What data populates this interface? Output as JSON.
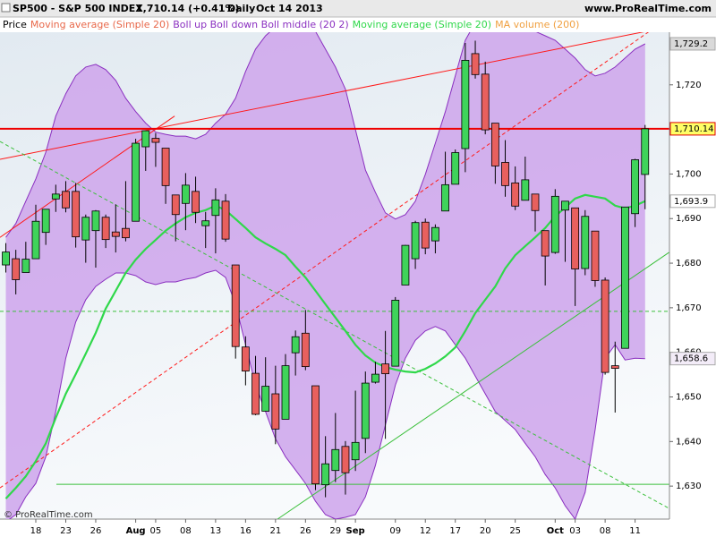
{
  "chart_data": {
    "type": "candlestick",
    "title": "SP500 - S&P 500 INDEX",
    "quote": "1,710.14 (+0.41%)",
    "period": "Daily",
    "date": "Oct 14 2013",
    "source": "www.ProRealTime.com",
    "copyright": "© ProRealTime.com",
    "categories": [
      null,
      null,
      null,
      "18",
      null,
      null,
      "23",
      null,
      null,
      "26",
      null,
      null,
      null,
      "Aug",
      null,
      "05",
      null,
      null,
      "08",
      null,
      null,
      "13",
      null,
      null,
      "16",
      null,
      null,
      "21",
      null,
      null,
      "26",
      null,
      null,
      "29",
      null,
      "Sep",
      null,
      null,
      null,
      "09",
      null,
      null,
      "12",
      null,
      null,
      "17",
      null,
      null,
      "20",
      null,
      null,
      "25",
      null,
      null,
      null,
      "Oct",
      null,
      "03",
      null,
      null,
      "08",
      null,
      null,
      "11",
      null
    ],
    "series": [
      {
        "name": "Price",
        "color": "#000000",
        "up_color": "#3fd35a",
        "down_color": "#e8605e",
        "open": [
          1679.6,
          1681.0,
          1677.9,
          1681.0,
          1686.9,
          1694.4,
          1696.1,
          1696.1,
          1685.2,
          1687.3,
          1690.3,
          1687.0,
          1687.8,
          1689.4,
          1706.1,
          1708.0,
          1705.8,
          1695.3,
          1693.4,
          1696.1,
          1688.4,
          1690.7,
          1693.9,
          1679.6,
          1661.2,
          1655.3,
          1646.8,
          1650.7,
          1645.0,
          1659.9,
          1664.3,
          1652.5,
          1630.3,
          1633.5,
          1638.9,
          1635.9,
          1640.7,
          1653.3,
          1657.4,
          1656.9,
          1675.1,
          1681.0,
          1689.2,
          1685.0,
          1691.7,
          1697.7,
          1705.7,
          1727.0,
          1722.4,
          1711.4,
          1702.6,
          1698.0,
          1694.1,
          1695.5,
          1687.3,
          1682.4,
          1691.9,
          1692.4,
          1678.8,
          1687.2,
          1676.2,
          1657.0,
          1660.9,
          1691.1,
          1699.9
        ],
        "high": [
          1684.5,
          1683.0,
          1684.8,
          1693.1,
          1692.1,
          1697.6,
          1698.4,
          1698.0,
          1690.9,
          1691.9,
          1690.9,
          1693.2,
          1698.4,
          1707.9,
          1709.7,
          1709.2,
          1705.8,
          1695.3,
          1700.2,
          1699.4,
          1691.5,
          1696.8,
          1695.5,
          1679.6,
          1663.6,
          1659.2,
          1658.9,
          1657.0,
          1659.6,
          1664.9,
          1669.5,
          1652.5,
          1641.2,
          1646.4,
          1640.1,
          1651.4,
          1655.7,
          1657.9,
          1664.8,
          1672.4,
          1684.1,
          1689.5,
          1690.0,
          1688.7,
          1705.0,
          1705.5,
          1729.4,
          1729.9,
          1725.2,
          1711.4,
          1707.6,
          1701.7,
          1703.9,
          1695.5,
          1687.3,
          1696.6,
          1693.9,
          1692.4,
          1691.9,
          1687.2,
          1676.8,
          1662.4,
          1692.6,
          1703.4,
          1711.0
        ],
        "low": [
          1677.9,
          1673.0,
          1677.9,
          1681.0,
          1684.1,
          1691.5,
          1691.4,
          1683.5,
          1680.1,
          1679.0,
          1683.4,
          1682.4,
          1684.9,
          1689.4,
          1700.7,
          1701.6,
          1693.3,
          1684.9,
          1687.4,
          1689.0,
          1683.4,
          1682.2,
          1684.8,
          1658.6,
          1652.6,
          1645.9,
          1646.8,
          1639.4,
          1645.0,
          1654.8,
          1656.0,
          1629.1,
          1627.5,
          1630.9,
          1628.1,
          1633.4,
          1637.4,
          1653.0,
          1640.6,
          1656.9,
          1675.1,
          1678.7,
          1682.0,
          1682.2,
          1691.7,
          1697.7,
          1700.4,
          1721.4,
          1708.9,
          1697.8,
          1694.9,
          1691.9,
          1694.1,
          1687.1,
          1675.0,
          1682.1,
          1680.3,
          1670.4,
          1677.3,
          1674.7,
          1655.0,
          1646.5,
          1660.9,
          1688.1,
          1692.1
        ],
        "close": [
          1682.5,
          1676.3,
          1680.9,
          1689.4,
          1692.1,
          1695.5,
          1692.4,
          1685.9,
          1690.3,
          1691.7,
          1685.3,
          1686.0,
          1685.7,
          1706.9,
          1709.7,
          1707.1,
          1697.4,
          1690.9,
          1697.5,
          1691.4,
          1689.5,
          1694.2,
          1685.4,
          1661.3,
          1655.8,
          1646.1,
          1652.4,
          1642.8,
          1657.0,
          1663.5,
          1656.8,
          1630.5,
          1635.0,
          1638.2,
          1633.0,
          1639.8,
          1653.1,
          1655.1,
          1655.2,
          1671.7,
          1684.0,
          1689.1,
          1683.4,
          1688.0,
          1697.6,
          1704.8,
          1725.5,
          1722.3,
          1709.9,
          1701.8,
          1697.4,
          1692.8,
          1698.7,
          1691.8,
          1681.6,
          1695.0,
          1693.9,
          1678.7,
          1690.5,
          1676.1,
          1655.5,
          1656.4,
          1692.6,
          1703.2,
          1710.14
        ]
      },
      {
        "name": "Moving average (Simple 20)",
        "color": "#e8684a"
      },
      {
        "name": "Boll up Boll down Boll middle (20 2)",
        "color": "#8a2fc0",
        "fill": "#cfa8ec",
        "upper": [
          1685.8,
          1688.9,
          1693.9,
          1698.9,
          1704.9,
          1713.0,
          1718.0,
          1722.0,
          1724.0,
          1724.6,
          1723.4,
          1721.0,
          1717.0,
          1714.0,
          1711.4,
          1709.4,
          1708.9,
          1708.5,
          1708.5,
          1707.9,
          1708.9,
          1711.4,
          1713.4,
          1717.0,
          1723.0,
          1728.0,
          1731.0,
          1733.0,
          1734.0,
          1734.0,
          1733.0,
          1732.0,
          1728.0,
          1724.0,
          1719.0,
          1710.0,
          1700.9,
          1695.9,
          1691.3,
          1689.9,
          1690.9,
          1693.9,
          1699.9,
          1706.9,
          1714.0,
          1722.0,
          1730.0,
          1734.0,
          1736.0,
          1737.0,
          1737.0,
          1736.0,
          1734.0,
          1732.0,
          1731.0,
          1730.0,
          1728.0,
          1726.0,
          1723.4,
          1722.0,
          1722.6,
          1724.0,
          1726.0,
          1728.0,
          1729.2
        ],
        "lower": [
          1622.0,
          1623.6,
          1627.6,
          1630.6,
          1636.6,
          1646.7,
          1658.7,
          1666.8,
          1671.8,
          1674.8,
          1676.4,
          1677.8,
          1677.8,
          1677.2,
          1675.8,
          1675.2,
          1675.8,
          1675.8,
          1676.4,
          1676.8,
          1677.8,
          1678.4,
          1676.8,
          1670.8,
          1661.7,
          1652.7,
          1646.7,
          1640.6,
          1636.6,
          1633.6,
          1630.6,
          1626.6,
          1623.6,
          1622.6,
          1623.0,
          1623.6,
          1627.6,
          1634.6,
          1643.7,
          1652.7,
          1658.7,
          1662.7,
          1664.8,
          1665.8,
          1664.8,
          1661.7,
          1658.7,
          1654.7,
          1650.7,
          1646.7,
          1644.7,
          1642.7,
          1639.6,
          1636.6,
          1632.6,
          1629.6,
          1625.6,
          1622.6,
          1628.6,
          1642.7,
          1658.7,
          1661.7,
          1658.3,
          1658.7,
          1658.6
        ]
      },
      {
        "name": "Moving average (Simple 20)",
        "color": "#2fd84a",
        "values": [
          1627.2,
          1629.6,
          1632.2,
          1635.6,
          1639.6,
          1645.3,
          1650.7,
          1655.1,
          1659.7,
          1664.4,
          1669.8,
          1673.8,
          1677.8,
          1680.8,
          1683.2,
          1685.2,
          1687.3,
          1688.9,
          1690.3,
          1691.3,
          1691.9,
          1692.9,
          1691.9,
          1689.9,
          1687.9,
          1685.8,
          1684.4,
          1683.2,
          1681.8,
          1679.2,
          1676.8,
          1673.8,
          1670.8,
          1667.8,
          1664.8,
          1661.7,
          1659.3,
          1657.7,
          1656.7,
          1656.1,
          1655.7,
          1655.5,
          1656.3,
          1657.5,
          1659.1,
          1661.1,
          1664.8,
          1668.8,
          1671.8,
          1674.8,
          1678.8,
          1681.8,
          1683.8,
          1685.8,
          1687.9,
          1690.5,
          1692.5,
          1694.5,
          1695.3,
          1694.9,
          1694.5,
          1692.9,
          1692.3,
          1692.9,
          1693.9
        ]
      },
      {
        "name": "MA volume (200)",
        "color": "#f0a040"
      }
    ],
    "ylim": [
      1622.6,
      1731.8
    ],
    "yticks": [
      {
        "value": 1630,
        "label": "1,630"
      },
      {
        "value": 1640,
        "label": "1,640"
      },
      {
        "value": 1650,
        "label": "1,650"
      },
      {
        "value": 1660,
        "label": "1,660"
      },
      {
        "value": 1670,
        "label": "1,670"
      },
      {
        "value": 1680,
        "label": "1,680"
      },
      {
        "value": 1690,
        "label": "1,690"
      },
      {
        "value": 1700,
        "label": "1,700"
      },
      {
        "value": 1710,
        "label": "1,710"
      },
      {
        "value": 1720,
        "label": "1,720"
      }
    ],
    "price_tags": [
      {
        "value": 1729.2,
        "label": "1,729.2",
        "color": "#333333",
        "background": "#d9d9d9"
      },
      {
        "value": 1710.14,
        "label": "1,710.14",
        "color": "#000000",
        "background": "#ffff66",
        "border": "#e00000"
      },
      {
        "value": 1693.9,
        "label": "1,693.9",
        "color": "#10a030",
        "background": "#ffffff"
      },
      {
        "value": 1658.6,
        "label": "1,658.6",
        "color": "#7a20b0",
        "background": "#f3ecf8"
      }
    ],
    "trend_lines": [
      {
        "color": "#ff1a1a",
        "style": "solid",
        "width": 1,
        "x": [
          -0.58,
          16.9
        ],
        "y": [
          1685.8,
          1713.0
        ]
      },
      {
        "color": "#ff1a1a",
        "style": "solid",
        "width": 1,
        "x": [
          -0.58,
          66.4
        ],
        "y": [
          1703.3,
          1733.0
        ]
      },
      {
        "color": "#ff1a1a",
        "style": "dashed",
        "width": 1,
        "x": [
          -0.58,
          66.4
        ],
        "y": [
          1629.6,
          1735.1
        ]
      },
      {
        "color": "#3cc03c",
        "style": "dashed",
        "width": 1,
        "x": [
          -0.58,
          66.4
        ],
        "y": [
          1707.3,
          1625.0
        ]
      },
      {
        "color": "#3cc03c",
        "style": "solid",
        "width": 1,
        "x": [
          27.2,
          66.4
        ],
        "y": [
          1622.6,
          1682.4
        ]
      },
      {
        "color": "#3cc03c",
        "style": "dashed",
        "width": 1,
        "x": [
          -0.58,
          66.4
        ],
        "y": [
          1669.2,
          1669.2
        ]
      },
      {
        "color": "#3cc03c",
        "style": "solid",
        "width": 1,
        "x": [
          5.06,
          66.4
        ],
        "y": [
          1630.4,
          1630.4
        ]
      },
      {
        "color": "#ee0000",
        "style": "solid",
        "width": 2,
        "x": [
          -0.58,
          66.4
        ],
        "y": [
          1710.14,
          1710.14
        ]
      }
    ],
    "grid": false
  }
}
